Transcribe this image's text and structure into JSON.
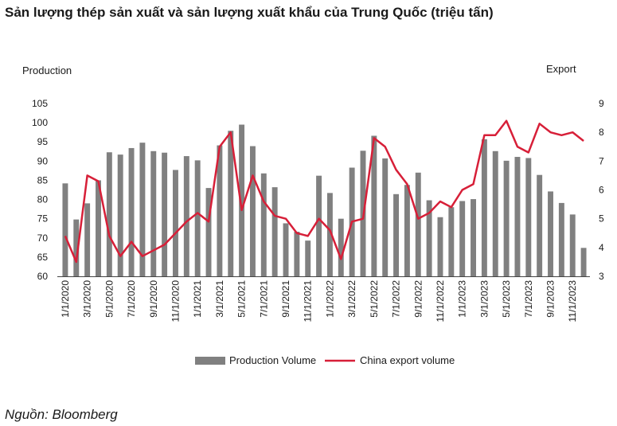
{
  "title": "Sản lượng thép sản xuất và sản lượng xuất khẩu của Trung Quốc (triệu tấn)",
  "source": "Nguồn: Bloomberg",
  "chart_data": {
    "type": "bar+line",
    "ylabel_left": "Production",
    "ylabel_right": "Export",
    "ylim_left": [
      60,
      105
    ],
    "ylim_right": [
      3,
      9
    ],
    "yticks_left": [
      "60",
      "65",
      "70",
      "75",
      "80",
      "85",
      "90",
      "95",
      "100",
      "105"
    ],
    "yticks_right": [
      "3",
      "4",
      "5",
      "6",
      "7",
      "8",
      "9"
    ],
    "xtick_labels": [
      "1/1/2020",
      "3/1/2020",
      "5/1/2020",
      "7/1/2020",
      "9/1/2020",
      "11/1/2020",
      "1/1/2021",
      "3/1/2021",
      "5/1/2021",
      "7/1/2021",
      "9/1/2021",
      "11/1/2021",
      "1/1/2022",
      "3/1/2022",
      "5/1/2022",
      "7/1/2022",
      "9/1/2022",
      "11/1/2022",
      "1/1/2023",
      "3/1/2023",
      "5/1/2023",
      "7/1/2023",
      "9/1/2023",
      "11/1/2023"
    ],
    "x": [
      "1/1/2020",
      "2/1/2020",
      "3/1/2020",
      "4/1/2020",
      "5/1/2020",
      "6/1/2020",
      "7/1/2020",
      "8/1/2020",
      "9/1/2020",
      "10/1/2020",
      "11/1/2020",
      "12/1/2020",
      "1/1/2021",
      "2/1/2021",
      "3/1/2021",
      "4/1/2021",
      "5/1/2021",
      "6/1/2021",
      "7/1/2021",
      "8/1/2021",
      "9/1/2021",
      "10/1/2021",
      "11/1/2021",
      "12/1/2021",
      "1/1/2022",
      "2/1/2022",
      "3/1/2022",
      "4/1/2022",
      "5/1/2022",
      "6/1/2022",
      "7/1/2022",
      "8/1/2022",
      "9/1/2022",
      "10/1/2022",
      "11/1/2022",
      "12/1/2022",
      "1/1/2023",
      "2/1/2023",
      "3/1/2023",
      "4/1/2023",
      "5/1/2023",
      "6/1/2023",
      "7/1/2023",
      "8/1/2023",
      "9/1/2023",
      "10/1/2023",
      "11/1/2023",
      "12/1/2023"
    ],
    "series": [
      {
        "name": "Production Volume",
        "type": "bar",
        "axis": "left",
        "color": "#808080",
        "values": [
          84.2,
          74.8,
          79.0,
          85.0,
          92.3,
          91.7,
          93.4,
          94.8,
          92.6,
          92.2,
          87.7,
          91.3,
          90.2,
          83.0,
          94.1,
          97.9,
          99.5,
          93.9,
          86.8,
          83.2,
          73.8,
          71.6,
          69.3,
          86.2,
          81.7,
          75.0,
          88.3,
          92.7,
          96.6,
          90.7,
          81.4,
          83.8,
          87.0,
          79.8,
          75.4,
          78.0,
          79.6,
          80.1,
          95.7,
          92.6,
          90.1,
          91.1,
          90.8,
          86.4,
          82.1,
          79.1,
          76.1,
          67.4
        ]
      },
      {
        "name": "China export volume",
        "type": "line",
        "axis": "right",
        "color": "#d71f38",
        "values": [
          4.4,
          3.5,
          6.5,
          6.3,
          4.4,
          3.7,
          4.2,
          3.7,
          3.9,
          4.1,
          4.5,
          4.9,
          5.2,
          4.9,
          7.5,
          8.0,
          5.3,
          6.5,
          5.6,
          5.1,
          5.0,
          4.5,
          4.4,
          5.0,
          4.6,
          3.6,
          4.9,
          5.0,
          7.8,
          7.5,
          6.7,
          6.2,
          5.0,
          5.2,
          5.6,
          5.4,
          6.0,
          6.2,
          7.9,
          7.9,
          8.4,
          7.5,
          7.3,
          8.3,
          8.0,
          7.9,
          8.0,
          7.7
        ]
      }
    ],
    "legend_position": "bottom"
  }
}
